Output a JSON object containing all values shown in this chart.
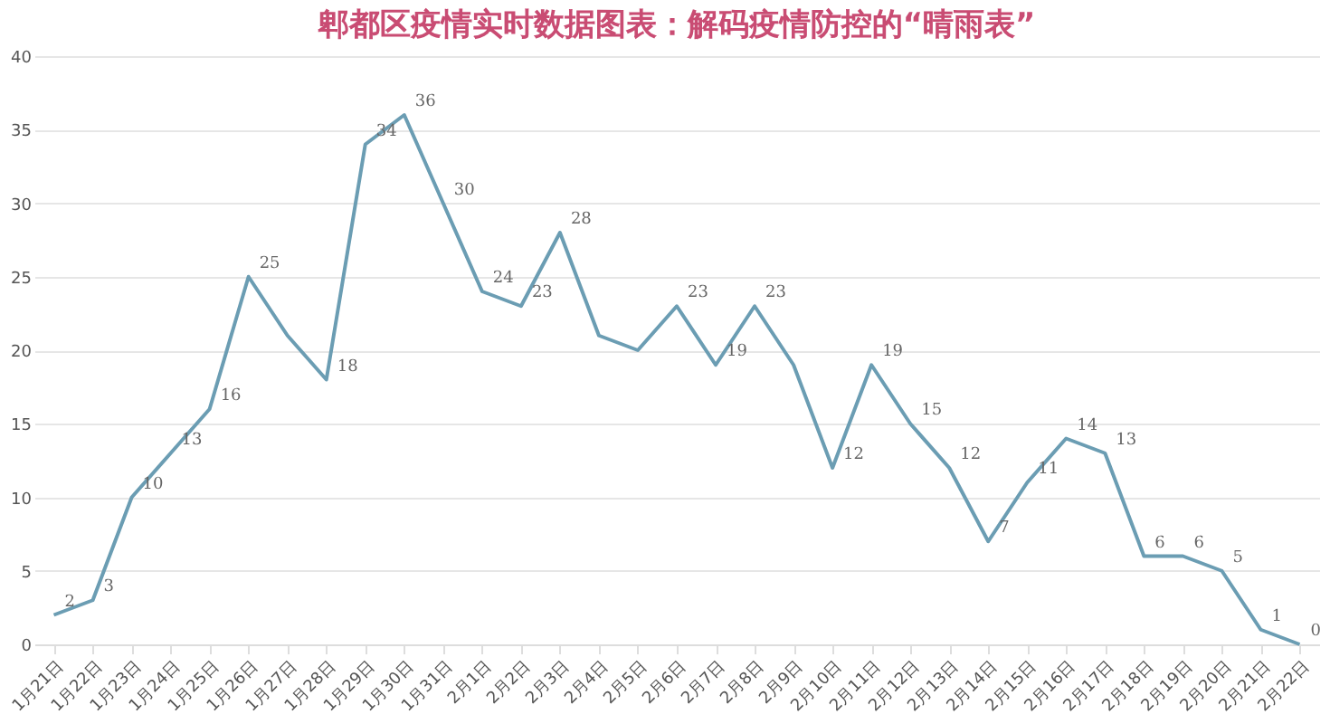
{
  "chart_data": {
    "type": "line",
    "title": "郫都区疫情实时数据图表：解码疫情防控的“晴雨表”",
    "categories": [
      "1月21日",
      "1月22日",
      "1月23日",
      "1月24日",
      "1月25日",
      "1月26日",
      "1月27日",
      "1月28日",
      "1月29日",
      "1月30日",
      "1月31日",
      "2月1日",
      "2月2日",
      "2月3日",
      "2月4日",
      "2月5日",
      "2月6日",
      "2月7日",
      "2月8日",
      "2月9日",
      "2月10日",
      "2月11日",
      "2月12日",
      "2月13日",
      "2月14日",
      "2月15日",
      "2月16日",
      "2月17日",
      "2月18日",
      "2月19日",
      "2月20日",
      "2月21日",
      "2月22日"
    ],
    "series": [
      {
        "color": "#6b9db3",
        "values": [
          2,
          3,
          10,
          13,
          16,
          25,
          21,
          18,
          34,
          36,
          30,
          24,
          23,
          28,
          21,
          20,
          23,
          19,
          23,
          19,
          12,
          19,
          15,
          12,
          7,
          11,
          14,
          13,
          6,
          6,
          5,
          1,
          0
        ],
        "value_labels": [
          "2",
          "3",
          "10",
          "13",
          "16",
          "25",
          null,
          "18",
          "34",
          "36",
          "30",
          "24",
          "23",
          "28",
          null,
          null,
          "23",
          "19",
          "23",
          null,
          "12",
          "19",
          "15",
          "12",
          "7",
          "11",
          "14",
          "13",
          "6",
          "6",
          "5",
          "1",
          "0"
        ]
      }
    ],
    "ylim": [
      0,
      40
    ],
    "yticks": [
      0,
      5,
      10,
      15,
      20,
      25,
      30,
      35,
      40
    ],
    "grid": "y",
    "marker": "none",
    "line_style": "solid"
  }
}
